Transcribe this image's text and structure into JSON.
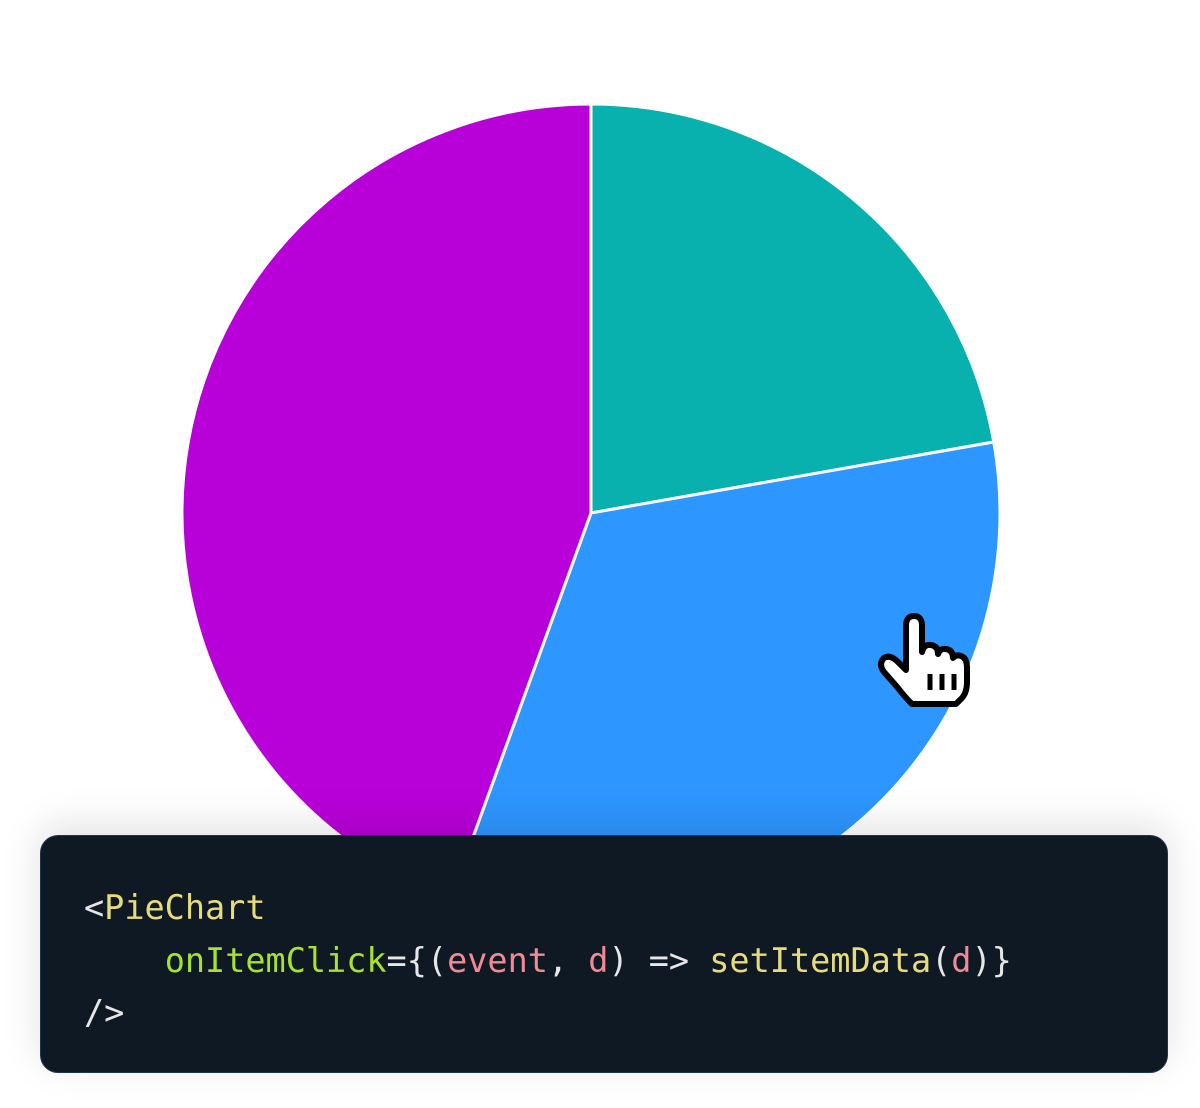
{
  "chart_data": {
    "type": "pie",
    "values": [
      10,
      15,
      20
    ],
    "colors": [
      "#08b1ae",
      "#2e96ff",
      "#b800d8"
    ],
    "start_angle_deg": 0,
    "direction": "clockwise",
    "legend": "none"
  },
  "code": {
    "line1": {
      "open": "<",
      "tag": "PieChart"
    },
    "line2": {
      "indent": "    ",
      "attr": "onItemClick",
      "eq": "={(",
      "p1": "event",
      "comma": ", ",
      "p2": "d",
      "arrow": ") => ",
      "fn": "setItemData",
      "lp": "(",
      "p3": "d",
      "close": ")}"
    },
    "line3": {
      "close": "/>"
    }
  },
  "cursor": {
    "icon": "pointer-hand-icon"
  }
}
